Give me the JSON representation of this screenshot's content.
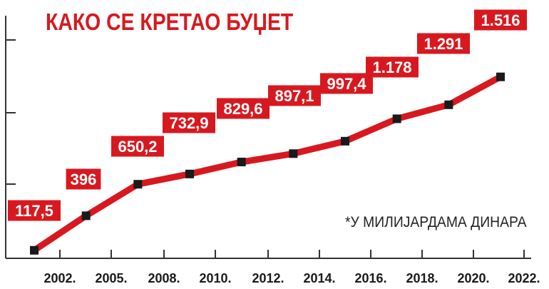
{
  "colors": {
    "accent": "#d7191f",
    "label_bg": "#d7191f",
    "marker": "#1a1a1a",
    "axis": "#333333"
  },
  "chart_data": {
    "type": "line",
    "title": "КАКО СЕ КРЕТАО БУЏЕТ",
    "note": "*У МИЛИЈАРДАМА ДИНАРА",
    "xlabel": "",
    "ylabel": "",
    "x_ticks": [
      "2002.",
      "2005.",
      "2008.",
      "2010.",
      "2012.",
      "2014.",
      "2016.",
      "2018.",
      "2020.",
      "2022."
    ],
    "grid": false,
    "ylim": [
      0,
      1600
    ],
    "series": [
      {
        "points": [
          {
            "value": 117.5,
            "label": "117,5"
          },
          {
            "value": 396,
            "label": "396"
          },
          {
            "value": 650.2,
            "label": "650,2"
          },
          {
            "value": 732.9,
            "label": "732,9"
          },
          {
            "value": 829.6,
            "label": "829,6"
          },
          {
            "value": 897.1,
            "label": "897,1"
          },
          {
            "value": 997.4,
            "label": "997,4"
          },
          {
            "value": 1178,
            "label": "1.178"
          },
          {
            "value": 1291,
            "label": "1.291"
          },
          {
            "value": 1516,
            "label": "1.516"
          }
        ]
      }
    ]
  }
}
